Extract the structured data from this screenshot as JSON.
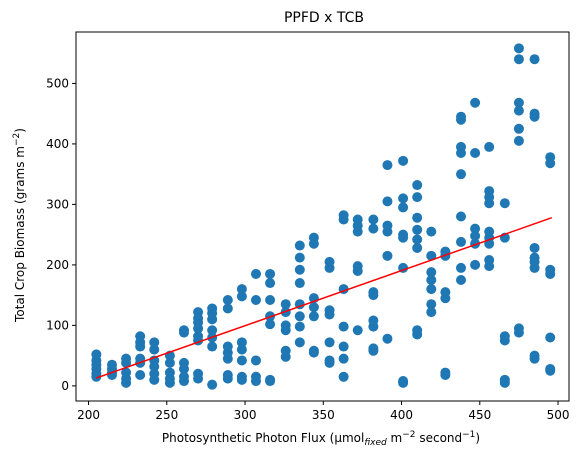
{
  "chart_data": {
    "type": "scatter",
    "title": "PPFD x TCB",
    "xlabel": {
      "prefix": "Photosynthetic Photon Flux (µmol",
      "sub": "fixed",
      "mid": " m",
      "sup1": "−2",
      "mid2": " second",
      "sup2": "−1",
      "suffix": ")"
    },
    "ylabel": {
      "prefix": "Total Crop Biomass (grams m",
      "sup": "−2",
      "suffix": ")"
    },
    "xlim": [
      192,
      507
    ],
    "ylim": [
      -25,
      585
    ],
    "xticks": [
      200,
      250,
      300,
      350,
      400,
      450,
      500
    ],
    "yticks": [
      0,
      100,
      200,
      300,
      400,
      500
    ],
    "xtick_labels": [
      "200",
      "250",
      "300",
      "350",
      "400",
      "450",
      "500"
    ],
    "ytick_labels": [
      "0",
      "100",
      "200",
      "300",
      "400",
      "500"
    ],
    "point_color": "#1f77b4",
    "line_color": "#ff0000",
    "trend_line": {
      "x": [
        205,
        496
      ],
      "y": [
        13,
        278
      ]
    },
    "points": [
      [
        205,
        15
      ],
      [
        205,
        20
      ],
      [
        205,
        28
      ],
      [
        205,
        35
      ],
      [
        205,
        42
      ],
      [
        205,
        52
      ],
      [
        215,
        18
      ],
      [
        215,
        22
      ],
      [
        215,
        28
      ],
      [
        215,
        35
      ],
      [
        224,
        5
      ],
      [
        224,
        12
      ],
      [
        224,
        22
      ],
      [
        224,
        38
      ],
      [
        224,
        45
      ],
      [
        233,
        18
      ],
      [
        233,
        38
      ],
      [
        233,
        45
      ],
      [
        233,
        65
      ],
      [
        233,
        72
      ],
      [
        233,
        82
      ],
      [
        242,
        10
      ],
      [
        242,
        20
      ],
      [
        242,
        32
      ],
      [
        242,
        42
      ],
      [
        242,
        60
      ],
      [
        242,
        72
      ],
      [
        252,
        5
      ],
      [
        252,
        12
      ],
      [
        252,
        22
      ],
      [
        252,
        38
      ],
      [
        252,
        50
      ],
      [
        261,
        8
      ],
      [
        261,
        15
      ],
      [
        261,
        28
      ],
      [
        261,
        38
      ],
      [
        261,
        88
      ],
      [
        261,
        92
      ],
      [
        270,
        12
      ],
      [
        270,
        20
      ],
      [
        270,
        75
      ],
      [
        270,
        82
      ],
      [
        270,
        95
      ],
      [
        270,
        105
      ],
      [
        270,
        112
      ],
      [
        270,
        122
      ],
      [
        279,
        2
      ],
      [
        279,
        65
      ],
      [
        279,
        80
      ],
      [
        279,
        92
      ],
      [
        279,
        110
      ],
      [
        279,
        120
      ],
      [
        279,
        128
      ],
      [
        289,
        12
      ],
      [
        289,
        18
      ],
      [
        289,
        45
      ],
      [
        289,
        55
      ],
      [
        289,
        65
      ],
      [
        289,
        128
      ],
      [
        289,
        142
      ],
      [
        298,
        10
      ],
      [
        298,
        15
      ],
      [
        298,
        42
      ],
      [
        298,
        60
      ],
      [
        298,
        72
      ],
      [
        298,
        148
      ],
      [
        298,
        160
      ],
      [
        307,
        8
      ],
      [
        307,
        15
      ],
      [
        307,
        42
      ],
      [
        307,
        142
      ],
      [
        307,
        185
      ],
      [
        316,
        8
      ],
      [
        316,
        10
      ],
      [
        316,
        102
      ],
      [
        316,
        115
      ],
      [
        316,
        142
      ],
      [
        316,
        170
      ],
      [
        316,
        185
      ],
      [
        326,
        48
      ],
      [
        326,
        58
      ],
      [
        326,
        92
      ],
      [
        326,
        100
      ],
      [
        326,
        122
      ],
      [
        326,
        135
      ],
      [
        335,
        72
      ],
      [
        335,
        98
      ],
      [
        335,
        115
      ],
      [
        335,
        135
      ],
      [
        335,
        170
      ],
      [
        335,
        192
      ],
      [
        335,
        212
      ],
      [
        335,
        232
      ],
      [
        344,
        55
      ],
      [
        344,
        58
      ],
      [
        344,
        115
      ],
      [
        344,
        130
      ],
      [
        344,
        145
      ],
      [
        344,
        235
      ],
      [
        344,
        245
      ],
      [
        354,
        38
      ],
      [
        354,
        42
      ],
      [
        354,
        72
      ],
      [
        354,
        118
      ],
      [
        354,
        125
      ],
      [
        354,
        195
      ],
      [
        354,
        205
      ],
      [
        363,
        15
      ],
      [
        363,
        45
      ],
      [
        363,
        65
      ],
      [
        363,
        98
      ],
      [
        363,
        160
      ],
      [
        363,
        275
      ],
      [
        363,
        282
      ],
      [
        372,
        92
      ],
      [
        372,
        190
      ],
      [
        372,
        198
      ],
      [
        372,
        255
      ],
      [
        372,
        265
      ],
      [
        372,
        275
      ],
      [
        382,
        58
      ],
      [
        382,
        62
      ],
      [
        382,
        98
      ],
      [
        382,
        108
      ],
      [
        382,
        150
      ],
      [
        382,
        155
      ],
      [
        382,
        260
      ],
      [
        382,
        275
      ],
      [
        391,
        78
      ],
      [
        391,
        215
      ],
      [
        391,
        255
      ],
      [
        391,
        265
      ],
      [
        391,
        305
      ],
      [
        391,
        365
      ],
      [
        401,
        5
      ],
      [
        401,
        8
      ],
      [
        401,
        195
      ],
      [
        401,
        245
      ],
      [
        401,
        250
      ],
      [
        401,
        295
      ],
      [
        401,
        310
      ],
      [
        401,
        372
      ],
      [
        410,
        85
      ],
      [
        410,
        92
      ],
      [
        410,
        228
      ],
      [
        410,
        242
      ],
      [
        410,
        258
      ],
      [
        410,
        278
      ],
      [
        410,
        312
      ],
      [
        410,
        332
      ],
      [
        419,
        122
      ],
      [
        419,
        135
      ],
      [
        419,
        160
      ],
      [
        419,
        175
      ],
      [
        419,
        188
      ],
      [
        419,
        215
      ],
      [
        419,
        255
      ],
      [
        428,
        18
      ],
      [
        428,
        22
      ],
      [
        428,
        145
      ],
      [
        428,
        155
      ],
      [
        428,
        215
      ],
      [
        428,
        222
      ],
      [
        438,
        175
      ],
      [
        438,
        195
      ],
      [
        438,
        238
      ],
      [
        438,
        280
      ],
      [
        438,
        350
      ],
      [
        438,
        385
      ],
      [
        438,
        395
      ],
      [
        438,
        440
      ],
      [
        438,
        445
      ],
      [
        447,
        200
      ],
      [
        447,
        235
      ],
      [
        447,
        248
      ],
      [
        447,
        260
      ],
      [
        447,
        385
      ],
      [
        447,
        468
      ],
      [
        456,
        198
      ],
      [
        456,
        208
      ],
      [
        456,
        235
      ],
      [
        456,
        245
      ],
      [
        456,
        255
      ],
      [
        456,
        302
      ],
      [
        456,
        312
      ],
      [
        456,
        322
      ],
      [
        456,
        395
      ],
      [
        466,
        5
      ],
      [
        466,
        10
      ],
      [
        466,
        75
      ],
      [
        466,
        82
      ],
      [
        466,
        245
      ],
      [
        466,
        302
      ],
      [
        475,
        88
      ],
      [
        475,
        95
      ],
      [
        475,
        405
      ],
      [
        475,
        425
      ],
      [
        475,
        455
      ],
      [
        475,
        468
      ],
      [
        475,
        540
      ],
      [
        475,
        558
      ],
      [
        485,
        45
      ],
      [
        485,
        50
      ],
      [
        485,
        195
      ],
      [
        485,
        205
      ],
      [
        485,
        212
      ],
      [
        485,
        228
      ],
      [
        485,
        445
      ],
      [
        485,
        450
      ],
      [
        485,
        540
      ],
      [
        495,
        25
      ],
      [
        495,
        28
      ],
      [
        495,
        80
      ],
      [
        495,
        185
      ],
      [
        495,
        192
      ],
      [
        495,
        368
      ],
      [
        495,
        378
      ]
    ]
  }
}
